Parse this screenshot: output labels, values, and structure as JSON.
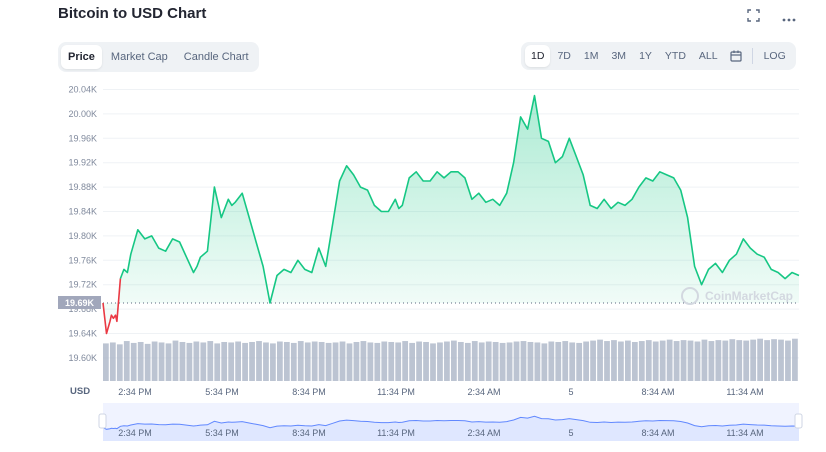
{
  "header": {
    "title": "Bitcoin to USD Chart",
    "fullscreen_icon": "fullscreen-icon",
    "more_icon": "more-options-icon"
  },
  "chart_tabs": [
    {
      "label": "Price",
      "active": true
    },
    {
      "label": "Market Cap",
      "active": false
    },
    {
      "label": "Candle Chart",
      "active": false
    }
  ],
  "ranges": [
    {
      "label": "1D",
      "active": true
    },
    {
      "label": "7D",
      "active": false
    },
    {
      "label": "1M",
      "active": false
    },
    {
      "label": "3M",
      "active": false
    },
    {
      "label": "1Y",
      "active": false
    },
    {
      "label": "YTD",
      "active": false
    },
    {
      "label": "ALL",
      "active": false
    }
  ],
  "calendar_icon": "calendar-icon",
  "log_label": "LOG",
  "watermark": "CoinMarketCap",
  "currency_label": "USD",
  "colors": {
    "up_line": "#16c784",
    "down_line": "#ea3943",
    "grid": "#eff2f5",
    "volume": "#a6b0c3",
    "navigator": "#6188ff",
    "current_label_bg": "#a1a7bb"
  },
  "chart_data": {
    "type": "line",
    "title": "Bitcoin to USD Chart",
    "ylim": [
      19.58,
      20.06
    ],
    "yunit": "K USD",
    "yticks": [
      "20.04K",
      "20.00K",
      "19.96K",
      "19.92K",
      "19.88K",
      "19.84K",
      "19.80K",
      "19.76K",
      "19.72K",
      "19.68K",
      "19.64K",
      "19.60K"
    ],
    "xticks": [
      "2:34 PM",
      "5:34 PM",
      "8:34 PM",
      "11:34 PM",
      "2:34 AM",
      "5",
      "8:34 AM",
      "11:34 AM"
    ],
    "current_price_label": "19.69K",
    "baseline": 19.69,
    "grid": true,
    "series": [
      {
        "x": [
          0,
          0.5,
          1.0,
          1.2,
          1.5,
          1.8,
          2.0,
          2.5,
          3.0,
          3.5,
          4.0,
          5.0,
          6.0,
          7.0,
          8.0,
          9.0,
          10.0,
          11.0,
          12.0,
          13.0,
          13.5,
          14.0,
          15.0,
          16.0,
          17.0,
          18.0,
          18.5,
          19.0,
          20.0,
          21.0,
          22.0,
          23.0,
          24.0,
          25.0,
          26.0,
          27.0,
          28.0,
          29.0,
          30.0,
          31.0,
          32.0,
          33.0,
          34.0,
          35.0,
          36.0,
          37.0,
          38.0,
          39.0,
          40.0,
          41.0,
          42.0,
          42.5,
          43.0,
          44.0,
          45.0,
          46.0,
          47.0,
          48.0,
          49.0,
          50.0,
          51.0,
          52.0,
          53.0,
          54.0,
          55.0,
          56.0,
          57.0,
          58.0,
          59.0,
          60.0,
          61.0,
          62.0,
          63.0,
          64.0,
          65.0,
          66.0,
          67.0,
          68.0,
          69.0,
          70.0,
          71.0,
          72.0,
          73.0,
          74.0,
          75.0,
          76.0,
          77.0,
          78.0,
          79.0,
          80.0,
          81.0,
          82.0,
          83.0,
          84.0,
          85.0,
          86.0,
          87.0,
          88.0,
          89.0,
          90.0,
          91.0,
          92.0,
          93.0,
          94.0,
          95.0,
          96.0,
          97.0,
          98.0,
          99.0,
          100.0
        ],
        "y": [
          19.69,
          19.64,
          19.66,
          19.67,
          19.665,
          19.67,
          19.66,
          19.73,
          19.745,
          19.74,
          19.77,
          19.81,
          19.795,
          19.8,
          19.78,
          19.775,
          19.795,
          19.79,
          19.765,
          19.74,
          19.75,
          19.765,
          19.775,
          19.88,
          19.83,
          19.86,
          19.85,
          19.855,
          19.87,
          19.83,
          19.79,
          19.75,
          19.69,
          19.735,
          19.745,
          19.74,
          19.76,
          19.745,
          19.74,
          19.78,
          19.75,
          19.82,
          19.89,
          19.915,
          19.9,
          19.88,
          19.875,
          19.85,
          19.84,
          19.84,
          19.86,
          19.845,
          19.85,
          19.895,
          19.905,
          19.89,
          19.89,
          19.905,
          19.895,
          19.905,
          19.905,
          19.895,
          19.86,
          19.87,
          19.855,
          19.86,
          19.85,
          19.87,
          19.92,
          19.995,
          19.975,
          20.03,
          19.96,
          19.955,
          19.92,
          19.93,
          19.96,
          19.93,
          19.9,
          19.85,
          19.845,
          19.86,
          19.845,
          19.855,
          19.85,
          19.86,
          19.88,
          19.895,
          19.89,
          19.905,
          19.9,
          19.895,
          19.875,
          19.83,
          19.75,
          19.72,
          19.745,
          19.755,
          19.74,
          19.76,
          19.77,
          19.795,
          19.78,
          19.77,
          19.765,
          19.745,
          19.74,
          19.73,
          19.74,
          19.735
        ]
      }
    ],
    "volume": [
      0.8,
      0.82,
      0.78,
      0.85,
      0.81,
      0.83,
      0.79,
      0.84,
      0.82,
      0.8,
      0.86,
      0.83,
      0.81,
      0.84,
      0.82,
      0.85,
      0.8,
      0.83,
      0.82,
      0.84,
      0.81,
      0.83,
      0.85,
      0.82,
      0.8,
      0.84,
      0.83,
      0.81,
      0.85,
      0.82,
      0.84,
      0.83,
      0.81,
      0.82,
      0.84,
      0.8,
      0.83,
      0.85,
      0.82,
      0.81,
      0.84,
      0.83,
      0.82,
      0.85,
      0.81,
      0.84,
      0.83,
      0.8,
      0.82,
      0.84,
      0.86,
      0.83,
      0.81,
      0.85,
      0.82,
      0.84,
      0.83,
      0.81,
      0.82,
      0.84,
      0.85,
      0.83,
      0.82,
      0.8,
      0.84,
      0.83,
      0.85,
      0.82,
      0.81,
      0.84,
      0.86,
      0.88,
      0.85,
      0.87,
      0.84,
      0.86,
      0.83,
      0.85,
      0.87,
      0.84,
      0.86,
      0.88,
      0.85,
      0.87,
      0.86,
      0.84,
      0.88,
      0.85,
      0.87,
      0.86,
      0.89,
      0.87,
      0.86,
      0.88,
      0.9,
      0.87,
      0.89,
      0.88,
      0.86,
      0.9
    ]
  }
}
